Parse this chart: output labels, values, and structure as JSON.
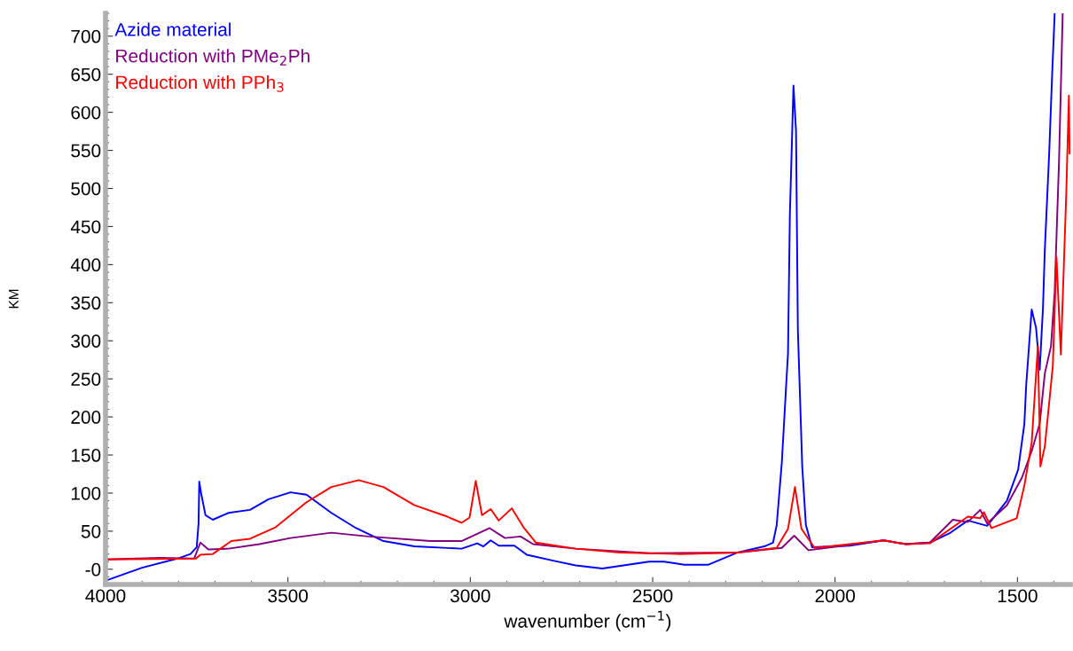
{
  "chart_data": {
    "type": "line",
    "xlabel": "wavenumber (cm$^{−1}$)",
    "ylabel": "KM",
    "xlim": [
      4000,
      1355
    ],
    "ylim": [
      -20,
      730
    ],
    "xticks": [
      4000,
      3500,
      3000,
      2500,
      2000,
      1500
    ],
    "yticks": [
      {
        "value": 0,
        "label": "-0"
      },
      50,
      100,
      150,
      200,
      250,
      300,
      350,
      400,
      450,
      500,
      550,
      600,
      650,
      700
    ],
    "grid": false,
    "legend": "top left",
    "marker": "none",
    "line_style": "solid",
    "series": [
      {
        "name": "Azide material",
        "color": "#0000ff",
        "x": [
          4000,
          3900,
          3803,
          3767,
          3750,
          3745,
          3743,
          3738,
          3726,
          3706,
          3663,
          3604,
          3553,
          3493,
          3449,
          3381,
          3313,
          3238,
          3153,
          3024,
          2981,
          2964,
          2944,
          2922,
          2879,
          2845,
          2770,
          2711,
          2638,
          2510,
          2469,
          2413,
          2347,
          2267,
          2194,
          2170,
          2160,
          2146,
          2136,
          2129,
          2124,
          2114,
          2107,
          2102,
          2090,
          2080,
          2063,
          1959,
          1867,
          1806,
          1740,
          1687,
          1636,
          1583,
          1529,
          1498,
          1481,
          1476,
          1461,
          1449,
          1439,
          1430,
          1425,
          1413,
          1405,
          1398
        ],
        "values": [
          -15,
          2,
          14,
          20,
          29,
          60,
          115,
          100,
          71,
          65,
          74,
          78,
          92,
          101,
          98,
          74,
          54,
          37,
          30,
          27,
          34,
          30,
          38,
          31,
          31,
          19,
          11,
          5,
          1,
          10,
          10,
          6,
          6,
          22,
          30,
          35,
          58,
          140,
          225,
          284,
          463,
          635,
          575,
          315,
          135,
          58,
          29,
          31,
          38,
          33,
          35,
          47,
          64,
          57,
          90,
          131,
          191,
          242,
          341,
          317,
          262,
          343,
          419,
          546,
          648,
          729
        ]
      },
      {
        "name": "Reduction with PMe$_{2}$Ph",
        "color": "#800080",
        "x": [
          4000,
          3850,
          3757,
          3740,
          3718,
          3663,
          3578,
          3493,
          3381,
          3279,
          3109,
          3024,
          2947,
          2905,
          2862,
          2828,
          2711,
          2510,
          2267,
          2146,
          2112,
          2073,
          2024,
          1942,
          1867,
          1806,
          1740,
          1677,
          1636,
          1602,
          1583,
          1529,
          1488,
          1461,
          1439,
          1425,
          1408,
          1398,
          1386,
          1376
        ],
        "values": [
          13,
          15,
          14,
          35,
          26,
          27,
          33,
          41,
          48,
          43,
          37,
          37,
          54,
          41,
          43,
          33,
          27,
          21,
          22,
          28,
          44,
          25,
          28,
          33,
          38,
          33,
          35,
          65,
          62,
          78,
          60,
          84,
          120,
          155,
          191,
          257,
          293,
          364,
          536,
          729
        ]
      },
      {
        "name": "Reduction with PPh$_{3}$",
        "color": "#ff0000",
        "x": [
          4000,
          3752,
          3740,
          3706,
          3655,
          3604,
          3534,
          3449,
          3381,
          3306,
          3238,
          3153,
          3068,
          3024,
          3002,
          2985,
          2968,
          2944,
          2922,
          2886,
          2854,
          2820,
          2711,
          2590,
          2427,
          2267,
          2160,
          2129,
          2110,
          2092,
          2056,
          1942,
          1867,
          1806,
          1740,
          1636,
          1602,
          1592,
          1571,
          1502,
          1481,
          1461,
          1444,
          1437,
          1425,
          1403,
          1393,
          1381,
          1366,
          1359,
          1357
        ],
        "values": [
          13,
          14,
          19,
          20,
          37,
          40,
          55,
          88,
          108,
          117,
          108,
          84,
          70,
          61,
          68,
          116,
          71,
          79,
          64,
          80,
          55,
          35,
          27,
          22,
          20,
          22,
          28,
          53,
          108,
          53,
          28,
          34,
          38,
          33,
          34,
          69,
          67,
          75,
          54,
          67,
          110,
          166,
          293,
          135,
          161,
          267,
          410,
          282,
          496,
          622,
          546
        ]
      }
    ]
  }
}
